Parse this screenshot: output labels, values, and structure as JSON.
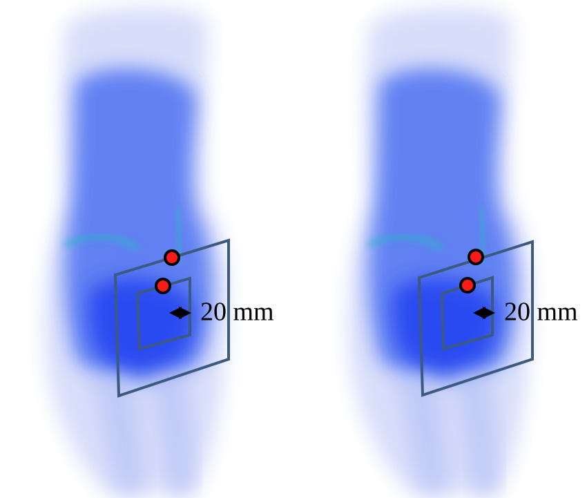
{
  "panels": [
    {
      "label": "20 mm"
    },
    {
      "label": "20 mm"
    }
  ]
}
